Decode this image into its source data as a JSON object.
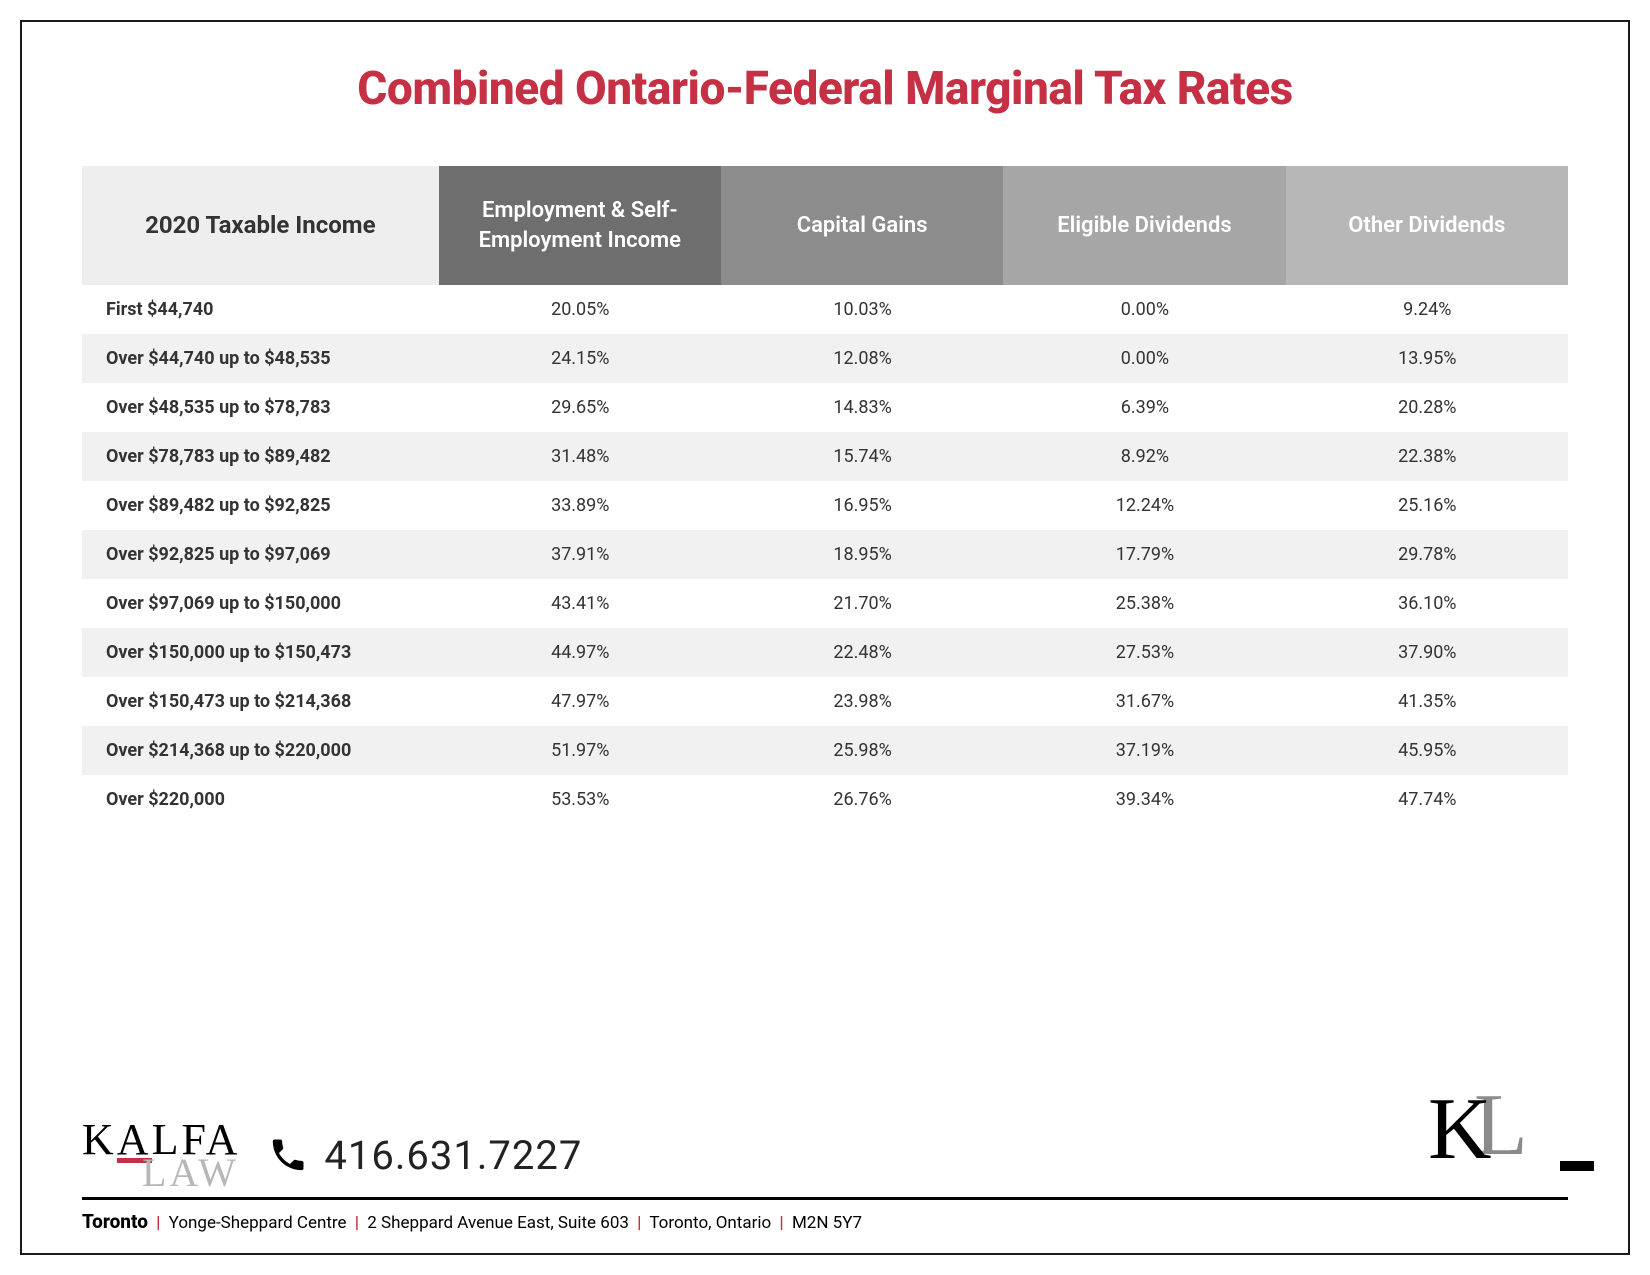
{
  "title": "Combined Ontario-Federal Marginal Tax Rates",
  "title_color": "#c53044",
  "table": {
    "type": "table",
    "header_bgs": [
      "#eeeeee",
      "#6e6e6e",
      "#8c8c8c",
      "#a6a6a6",
      "#b7b7b7"
    ],
    "row_odd_bg": "#ffffff",
    "row_even_bg": "#f1f1f1",
    "columns": [
      "2020 Taxable Income",
      "Employment & Self-Employment Income",
      "Capital Gains",
      "Eligible Dividends",
      "Other Dividends"
    ],
    "column_widths_pct": [
      24,
      19,
      19,
      19,
      19
    ],
    "header_fontsize": 22,
    "cell_fontsize": 18,
    "rows": [
      {
        "bracket": "First $44,740",
        "values": [
          "20.05%",
          "10.03%",
          "0.00%",
          "9.24%"
        ]
      },
      {
        "bracket": "Over $44,740 up to $48,535",
        "values": [
          "24.15%",
          "12.08%",
          "0.00%",
          "13.95%"
        ]
      },
      {
        "bracket": "Over $48,535 up to $78,783",
        "values": [
          "29.65%",
          "14.83%",
          "6.39%",
          "20.28%"
        ]
      },
      {
        "bracket": "Over $78,783 up to $89,482",
        "values": [
          "31.48%",
          "15.74%",
          "8.92%",
          "22.38%"
        ]
      },
      {
        "bracket": "Over $89,482 up to $92,825",
        "values": [
          "33.89%",
          "16.95%",
          "12.24%",
          "25.16%"
        ]
      },
      {
        "bracket": "Over $92,825 up to $97,069",
        "values": [
          "37.91%",
          "18.95%",
          "17.79%",
          "29.78%"
        ]
      },
      {
        "bracket": "Over $97,069 up to $150,000",
        "values": [
          "43.41%",
          "21.70%",
          "25.38%",
          "36.10%"
        ]
      },
      {
        "bracket": "Over $150,000 up to $150,473",
        "values": [
          "44.97%",
          "22.48%",
          "27.53%",
          "37.90%"
        ]
      },
      {
        "bracket": "Over $150,473 up to $214,368",
        "values": [
          "47.97%",
          "23.98%",
          "31.67%",
          "41.35%"
        ]
      },
      {
        "bracket": "Over $214,368 up to $220,000",
        "values": [
          "51.97%",
          "25.98%",
          "37.19%",
          "45.95%"
        ]
      },
      {
        "bracket": "Over $220,000",
        "values": [
          "53.53%",
          "26.76%",
          "39.34%",
          "47.74%"
        ]
      }
    ]
  },
  "footer": {
    "logo_line1": "KALFA",
    "logo_line2": "LAW",
    "phone": "416.631.7227",
    "monogram_k": "K",
    "monogram_l": "L",
    "accent_color": "#c53044",
    "address": {
      "city": "Toronto",
      "parts": [
        "Yonge-Sheppard Centre",
        "2 Sheppard Avenue East, Suite 603",
        "Toronto, Ontario",
        "M2N 5Y7"
      ]
    }
  }
}
